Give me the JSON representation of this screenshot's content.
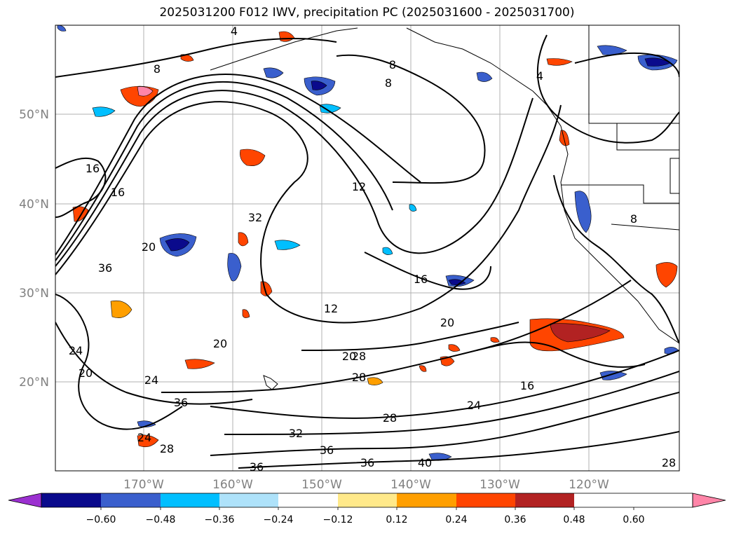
{
  "title": "2025031200 F012 IWV, precipitation PC (2025031600 - 2025031700)",
  "lat_labels": [
    "50°N",
    "40°N",
    "30°N",
    "20°N"
  ],
  "lon_labels": [
    "170°W",
    "160°W",
    "150°W",
    "140°W",
    "130°W",
    "120°W"
  ],
  "contour_labels": [
    "8",
    "8",
    "8",
    "4",
    "4",
    "16",
    "16",
    "20",
    "36",
    "32",
    "12",
    "16",
    "12",
    "20",
    "20",
    "24",
    "20",
    "24",
    "36",
    "28",
    "28",
    "16",
    "24",
    "28",
    "32",
    "36",
    "36",
    "40",
    "28",
    "36",
    "24",
    "28",
    "20",
    "8"
  ],
  "colorbar": {
    "ticks": [
      "−0.60",
      "−0.48",
      "−0.36",
      "−0.24",
      "−0.12",
      "0.12",
      "0.24",
      "0.36",
      "0.48",
      "0.60"
    ],
    "colors": [
      "#9b30d0",
      "#0a0a8c",
      "#3a5fcd",
      "#00bfff",
      "#aee2fa",
      "#ffffff",
      "#ffe98a",
      "#ff9f00",
      "#ff4500",
      "#b22222",
      "#ff85a8"
    ]
  }
}
